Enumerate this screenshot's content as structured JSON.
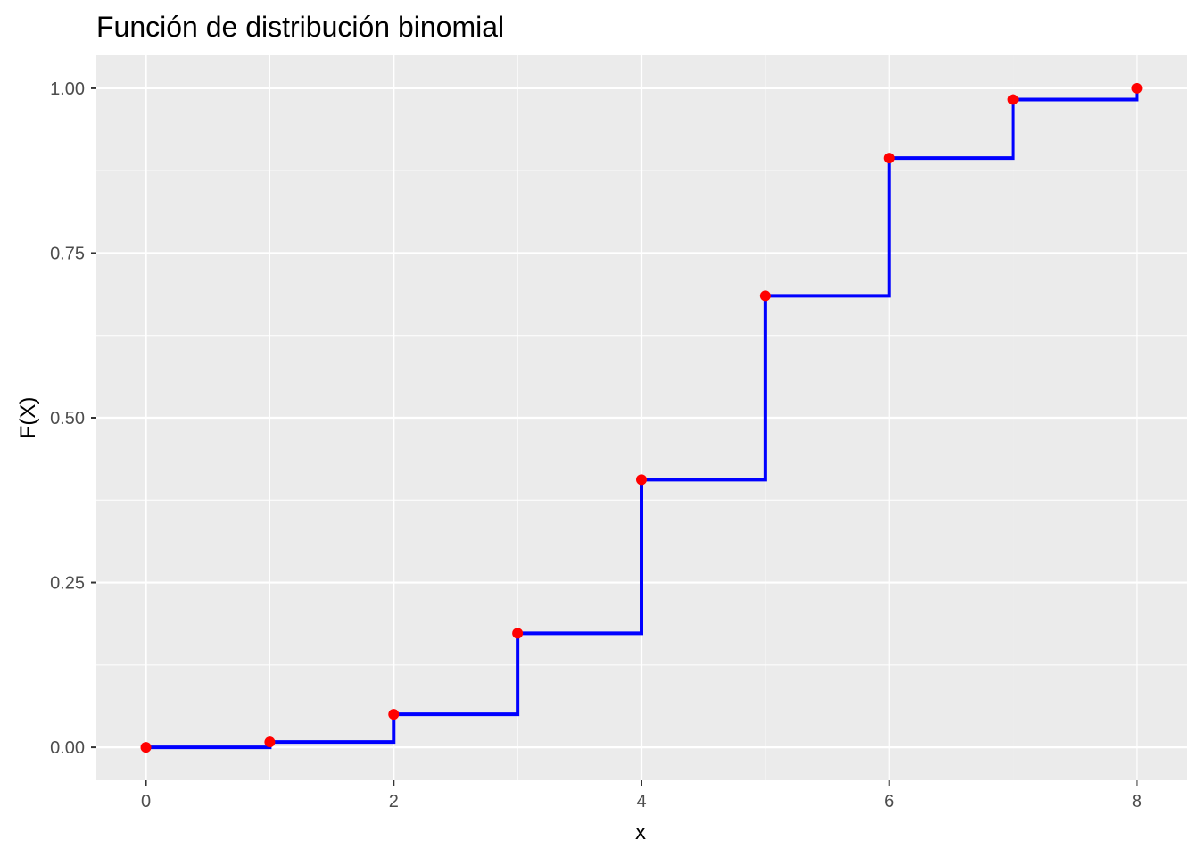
{
  "chart_data": {
    "type": "line",
    "step": true,
    "title": "Función de distribución binomial",
    "xlabel": "x",
    "ylabel": "F(X)",
    "x": [
      0,
      1,
      2,
      3,
      4,
      5,
      6,
      7,
      8
    ],
    "series": [
      {
        "values": [
          0.0,
          0.008,
          0.05,
          0.173,
          0.406,
          0.685,
          0.894,
          0.983,
          1.0
        ],
        "line_color": "#0000ff",
        "point_color": "#ff0000"
      }
    ],
    "xlim": [
      -0.4,
      8.4
    ],
    "ylim": [
      -0.05,
      1.05
    ],
    "x_ticks": [
      0,
      2,
      4,
      6,
      8
    ],
    "x_tick_labels": [
      "0",
      "2",
      "4",
      "6",
      "8"
    ],
    "y_ticks": [
      0,
      0.25,
      0.5,
      0.75,
      1
    ],
    "y_tick_labels": [
      "0.00",
      "0.25",
      "0.50",
      "0.75",
      "1.00"
    ],
    "grid": true,
    "panel_color": "#ebebeb",
    "grid_color": "#ffffff"
  }
}
